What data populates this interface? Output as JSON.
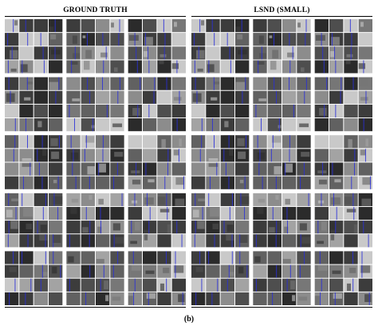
{
  "figure": {
    "caption": "(b)",
    "panels": [
      {
        "id": "left",
        "title": "GROUND TRUTH"
      },
      {
        "id": "right",
        "title": "LSND (SMALL)"
      }
    ],
    "mosaic": {
      "rows": 5,
      "columns": 3,
      "tile_grid": "4x4",
      "background": "#ffffff",
      "stripe_color": "#2a2fd8",
      "tile_tones": [
        "#2b2b2b",
        "#3c3c3c",
        "#4e4e4e",
        "#616161",
        "#777777",
        "#8c8c8c",
        "#a3a3a3",
        "#c9c9c9"
      ]
    }
  }
}
